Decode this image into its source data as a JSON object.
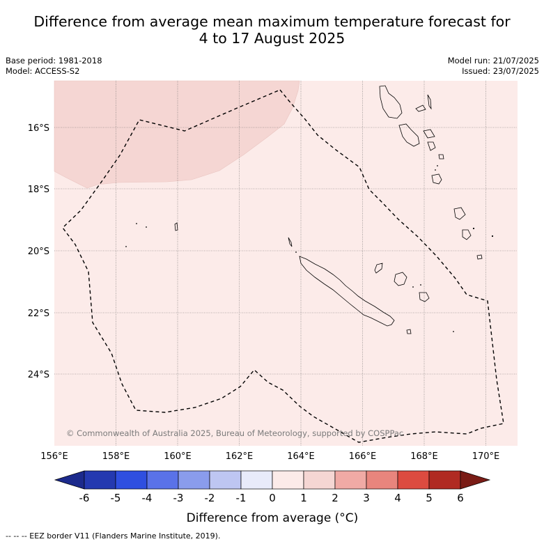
{
  "title": {
    "line1": "Difference from average mean maximum temperature forecast for",
    "line2": "4 to 17 August 2025"
  },
  "meta_left": {
    "base_period": "Base period: 1981-2018",
    "model": "Model: ACCESS-S2"
  },
  "meta_right": {
    "model_run": "Model run: 21/07/2025",
    "issued": "Issued: 23/07/2025"
  },
  "map": {
    "lon_labels": [
      "156°E",
      "158°E",
      "160°E",
      "162°E",
      "164°E",
      "166°E",
      "168°E",
      "170°E"
    ],
    "lat_labels": [
      "16°S",
      "18°S",
      "20°S",
      "22°S",
      "24°S"
    ],
    "credit": "© Commonwealth of Australia 2025, Bureau of Meteorology, supported by COSPPac",
    "anomaly_fill_colors": {
      "0_to_1": "#fcebe9",
      "1_to_2": "#f5d6d3"
    },
    "coastline_color": "#000000",
    "eez_line_style": "dashed black"
  },
  "colorbar": {
    "ticks": [
      "-6",
      "-5",
      "-4",
      "-3",
      "-2",
      "-1",
      "0",
      "1",
      "2",
      "3",
      "4",
      "5",
      "6"
    ],
    "colors": [
      "#1c2a8c",
      "#2439b0",
      "#2f4fe0",
      "#5a72e8",
      "#8a9cec",
      "#bec6f2",
      "#e8ebfa",
      "#fcebe9",
      "#f5d6d3",
      "#f0aaa5",
      "#e8857d",
      "#dc4b40",
      "#b02a22",
      "#7a1c16"
    ],
    "label": "Difference from average (°C)"
  },
  "footer": "-- -- -- EEZ border V11 (Flanders Marine Institute, 2019)."
}
